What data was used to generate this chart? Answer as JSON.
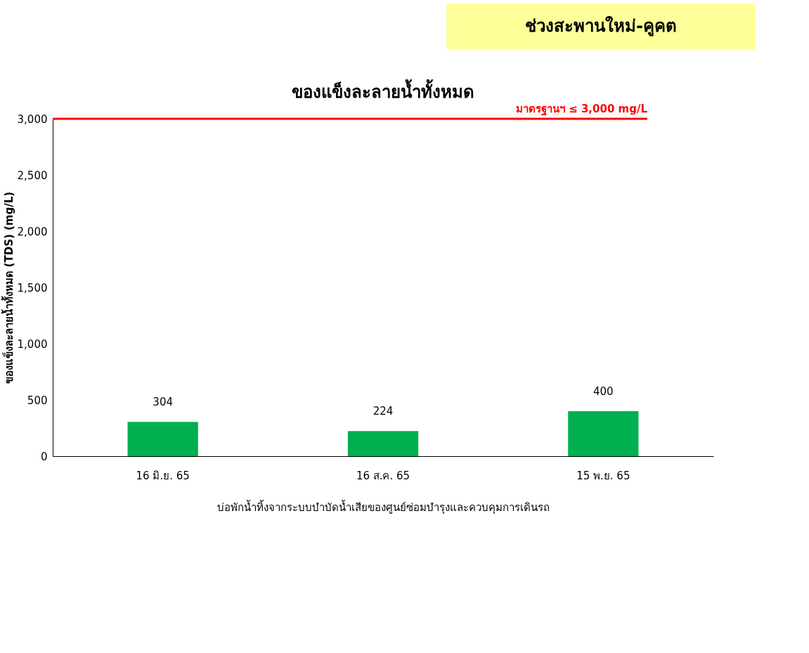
{
  "chart_data": {
    "type": "bar",
    "title": "ของแข็งละลายน้ำทั้งหมด",
    "annotations": [
      "ช่วงสะพานใหม่-คูคต"
    ],
    "xlabel": "บ่อพักน้ำทิ้งจากระบบบำบัดน้ำเสียของศูนย์ซ่อมบำรุงและควบคุมการเดินรถ",
    "ylabel": "ของแข็งละลายน้ำทั้งหมด (TDS) (mg/L)",
    "categories": [
      "16 มิ.ย. 65",
      "16 ส.ค. 65",
      "15 พ.ย. 65"
    ],
    "values": [
      304,
      224,
      400
    ],
    "color": "#00b050",
    "ylim": [
      0,
      3000
    ],
    "yticks": [
      0,
      500,
      {
        "value": 1000,
        "label": "1,000"
      },
      {
        "value": 1500,
        "label": "1,500"
      },
      {
        "value": 2000,
        "label": "2,000"
      },
      {
        "value": 2500,
        "label": "2,500"
      },
      {
        "value": 3000,
        "label": "3,000"
      }
    ],
    "ref_lines": [
      {
        "axis": "y",
        "value": 3000,
        "label": "มาตรฐานฯ ≤ 3,000 mg/L",
        "color": "#ff0000"
      }
    ],
    "data_labels": true,
    "grid": false
  }
}
